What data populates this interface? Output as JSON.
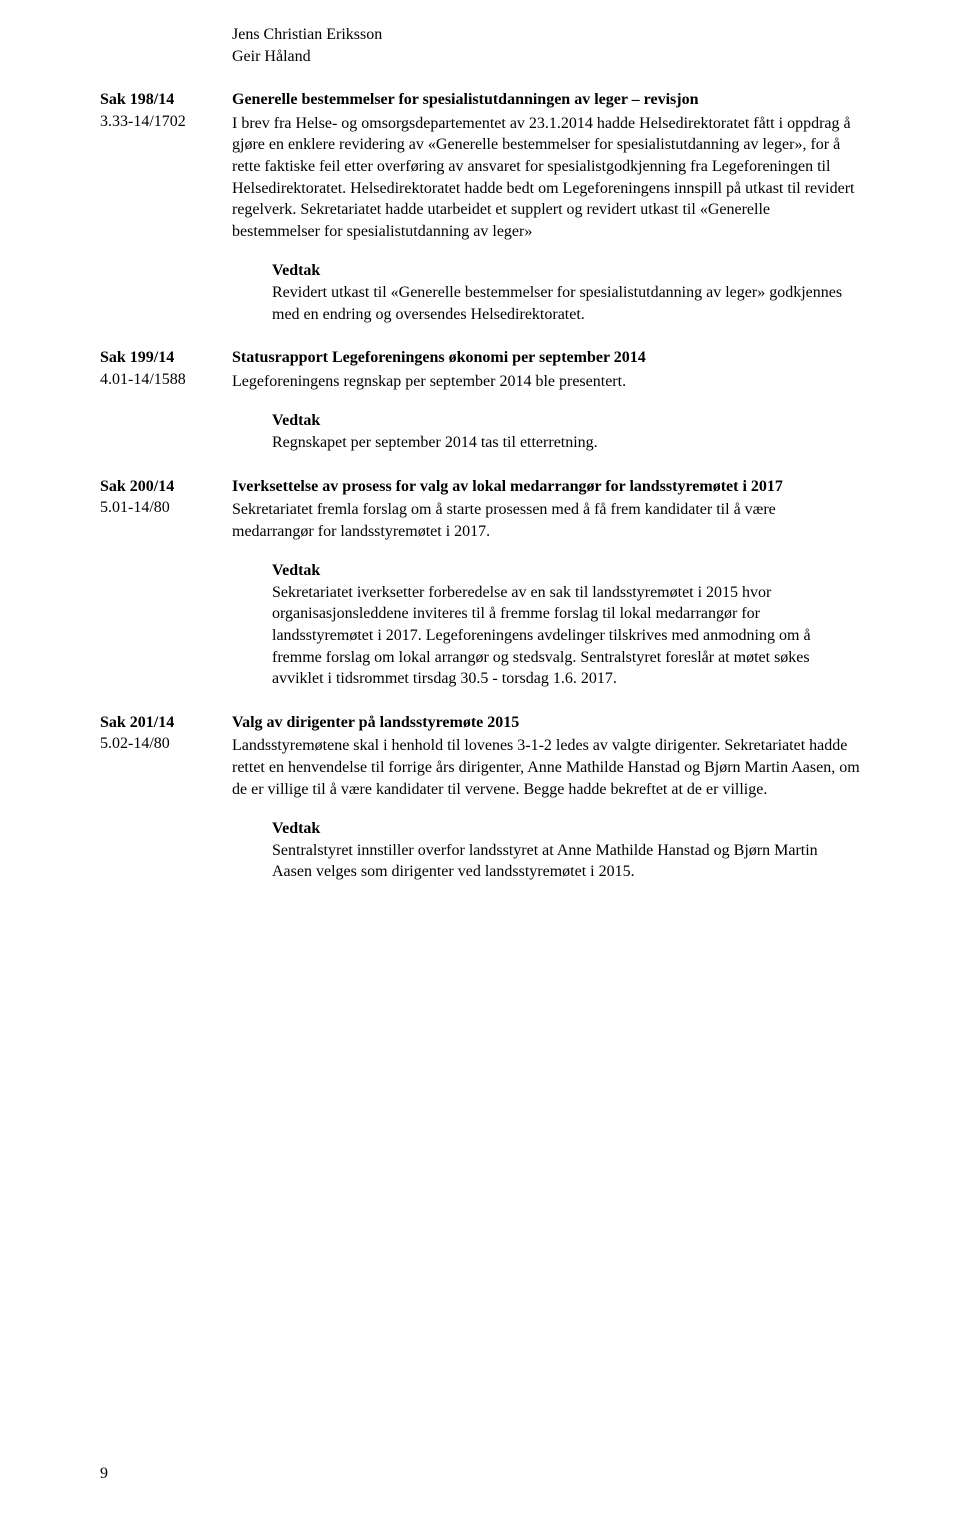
{
  "names": [
    "Jens Christian Eriksson",
    "Geir Håland"
  ],
  "items": [
    {
      "id": "Sak 198/14",
      "ref": "3.33-14/1702",
      "title": "Generelle bestemmelser for spesialistutdanningen av leger – revisjon",
      "body": "I brev fra Helse- og omsorgsdepartementet av 23.1.2014 hadde Helsedirektoratet fått i oppdrag å gjøre en enklere revidering av «Generelle bestemmelser for spesialistutdanning av leger», for å rette faktiske feil etter overføring av ansvaret for spesialistgodkjenning fra Legeforeningen til Helsedirektoratet. Helsedirektoratet hadde bedt om Legeforeningens innspill på utkast til revidert regelverk. Sekretariatet hadde utarbeidet et supplert og revidert utkast til «Generelle bestemmelser for spesialistutdanning av leger»",
      "vedtak_label": "Vedtak",
      "vedtak": "Revidert utkast til «Generelle bestemmelser for spesialistutdanning av leger» godkjennes med en endring og oversendes Helsedirektoratet."
    },
    {
      "id": "Sak 199/14",
      "ref": "4.01-14/1588",
      "title": "Statusrapport Legeforeningens økonomi per september 2014",
      "body": "Legeforeningens regnskap per september 2014 ble presentert.",
      "vedtak_label": "Vedtak",
      "vedtak": "Regnskapet per september 2014 tas til etterretning."
    },
    {
      "id": "Sak 200/14",
      "ref": "5.01-14/80",
      "title": "Iverksettelse av prosess for valg av lokal medarrangør for landsstyremøtet i 2017",
      "body": "Sekretariatet fremla forslag om å starte prosessen med å få frem kandidater til å være medarrangør for landsstyremøtet i 2017.",
      "vedtak_label": "Vedtak",
      "vedtak": "Sekretariatet iverksetter forberedelse av en sak til landsstyremøtet i 2015 hvor organisasjonsleddene inviteres til å fremme forslag til lokal medarrangør for landsstyremøtet i 2017. Legeforeningens avdelinger tilskrives med anmodning om å fremme forslag om lokal arrangør og stedsvalg. Sentralstyret foreslår at møtet søkes avviklet i tidsrommet tirsdag 30.5 - torsdag 1.6. 2017."
    },
    {
      "id": "Sak 201/14",
      "ref": "5.02-14/80",
      "title": "Valg av dirigenter på landsstyremøte 2015",
      "body": "Landsstyremøtene skal i henhold til lovenes 3-1-2 ledes av valgte dirigenter. Sekretariatet hadde rettet en henvendelse til forrige års dirigenter, Anne Mathilde Hanstad og Bjørn Martin Aasen, om de er villige til å være kandidater til vervene. Begge hadde bekreftet at de er villige.",
      "vedtak_label": "Vedtak",
      "vedtak": "Sentralstyret innstiller overfor landsstyret at Anne Mathilde Hanstad og Bjørn Martin Aasen velges som dirigenter ved landsstyremøtet i 2015."
    }
  ],
  "page_number": "9"
}
